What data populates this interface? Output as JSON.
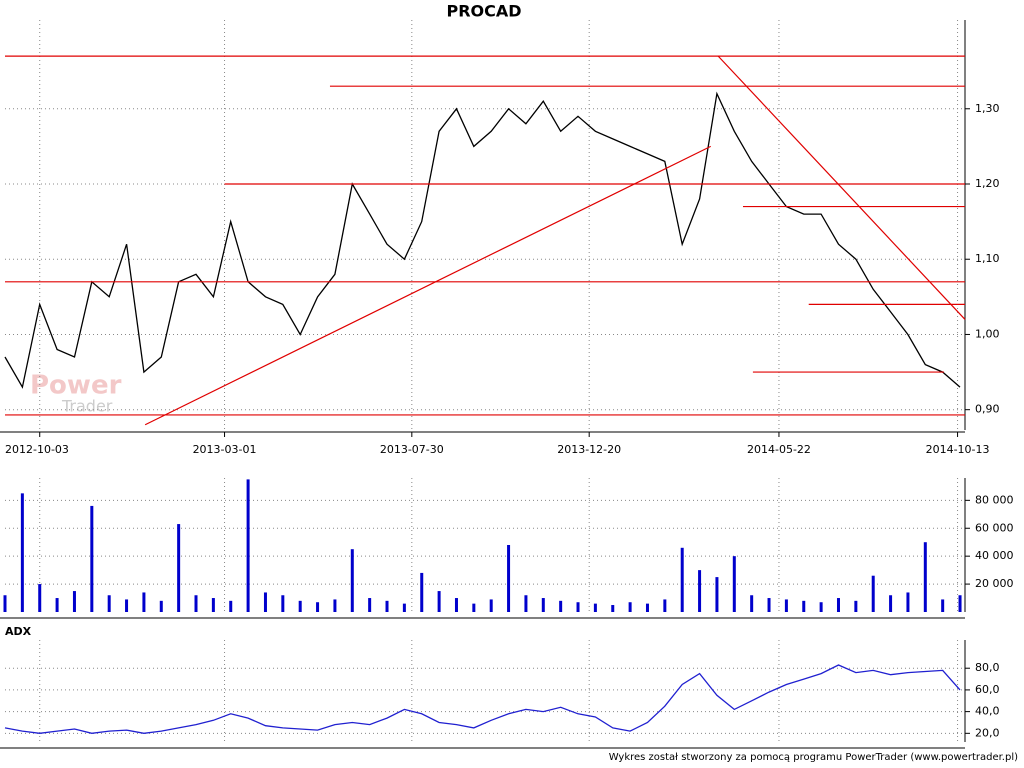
{
  "chart_data": [
    {
      "type": "line",
      "title": "PROCAD",
      "watermark": [
        "Power",
        "Trader"
      ],
      "x": [
        "2012-09-05",
        "2012-09-19",
        "2012-10-03",
        "2012-10-17",
        "2012-10-31",
        "2012-11-14",
        "2012-11-28",
        "2012-12-12",
        "2012-12-26",
        "2013-01-09",
        "2013-01-23",
        "2013-02-06",
        "2013-02-20",
        "2013-03-06",
        "2013-03-20",
        "2013-04-03",
        "2013-04-17",
        "2013-05-01",
        "2013-05-15",
        "2013-05-29",
        "2013-06-12",
        "2013-06-26",
        "2013-07-10",
        "2013-07-24",
        "2013-08-07",
        "2013-08-21",
        "2013-09-04",
        "2013-09-18",
        "2013-10-02",
        "2013-10-16",
        "2013-10-30",
        "2013-11-13",
        "2013-11-27",
        "2013-12-11",
        "2013-12-25",
        "2014-01-08",
        "2014-01-22",
        "2014-02-05",
        "2014-02-19",
        "2014-03-05",
        "2014-03-19",
        "2014-04-02",
        "2014-04-16",
        "2014-04-30",
        "2014-05-14",
        "2014-05-28",
        "2014-06-11",
        "2014-06-25",
        "2014-07-09",
        "2014-07-23",
        "2014-08-06",
        "2014-08-20",
        "2014-09-03",
        "2014-09-17",
        "2014-10-01",
        "2014-10-15"
      ],
      "series": [
        {
          "name": "PROCAD",
          "color": "#000000",
          "values": [
            0.97,
            0.93,
            1.04,
            0.98,
            0.97,
            1.07,
            1.05,
            1.12,
            0.95,
            0.97,
            1.07,
            1.08,
            1.05,
            1.15,
            1.07,
            1.05,
            1.04,
            1.0,
            1.05,
            1.08,
            1.2,
            1.16,
            1.12,
            1.1,
            1.15,
            1.27,
            1.3,
            1.25,
            1.27,
            1.3,
            1.28,
            1.31,
            1.27,
            1.29,
            1.27,
            1.26,
            1.25,
            1.24,
            1.23,
            1.12,
            1.18,
            1.32,
            1.27,
            1.23,
            1.2,
            1.17,
            1.16,
            1.16,
            1.12,
            1.1,
            1.06,
            1.03,
            1.0,
            0.96,
            0.95,
            0.93
          ]
        }
      ],
      "lines": [
        {
          "color": "#e00000",
          "x": [
            "2012-09-05",
            "2014-10-19"
          ],
          "y": [
            1.37,
            1.37
          ]
        },
        {
          "color": "#e00000",
          "x": [
            "2013-05-25",
            "2014-10-19"
          ],
          "y": [
            1.33,
            1.33
          ]
        },
        {
          "color": "#e00000",
          "x": [
            "2013-03-01",
            "2014-10-19"
          ],
          "y": [
            1.2,
            1.2
          ]
        },
        {
          "color": "#e00000",
          "x": [
            "2014-04-23",
            "2014-10-19"
          ],
          "y": [
            1.17,
            1.17
          ]
        },
        {
          "color": "#e00000",
          "x": [
            "2012-09-05",
            "2014-10-19"
          ],
          "y": [
            1.07,
            1.07
          ]
        },
        {
          "color": "#e00000",
          "x": [
            "2014-06-15",
            "2014-10-19"
          ],
          "y": [
            1.04,
            1.04
          ]
        },
        {
          "color": "#e00000",
          "x": [
            "2014-05-01",
            "2014-10-02"
          ],
          "y": [
            0.95,
            0.95
          ]
        },
        {
          "color": "#e00000",
          "x": [
            "2012-09-05",
            "2014-10-19"
          ],
          "y": [
            0.893,
            0.893
          ]
        },
        {
          "color": "#e00000",
          "x": [
            "2012-12-27",
            "2014-03-28"
          ],
          "y": [
            0.88,
            1.25
          ]
        },
        {
          "color": "#e00000",
          "x": [
            "2014-04-03",
            "2014-10-19"
          ],
          "y": [
            1.37,
            1.02
          ]
        }
      ],
      "xlim": [
        "2012-09-05",
        "2014-10-19"
      ],
      "xticks": [
        "2012-10-03",
        "2013-03-01",
        "2013-07-30",
        "2013-12-20",
        "2014-05-22",
        "2014-10-13"
      ],
      "ylim": [
        0.873,
        1.418
      ],
      "yticks": [
        {
          "value": 0.9,
          "label": "0,90"
        },
        {
          "value": 1.0,
          "label": "1,00"
        },
        {
          "value": 1.1,
          "label": "1,10"
        },
        {
          "value": 1.2,
          "label": "1,20"
        },
        {
          "value": 1.3,
          "label": "1,30"
        }
      ],
      "grid": true
    },
    {
      "type": "bar",
      "color": "#0000cc",
      "values": [
        12000,
        85000,
        20000,
        10000,
        15000,
        76000,
        12000,
        9000,
        14000,
        8000,
        63000,
        12000,
        10000,
        8000,
        95000,
        14000,
        12000,
        8000,
        7000,
        9000,
        45000,
        10000,
        8000,
        6000,
        28000,
        15000,
        10000,
        6000,
        9000,
        48000,
        12000,
        10000,
        8000,
        7000,
        6000,
        5000,
        7000,
        6000,
        9000,
        46000,
        30000,
        25000,
        40000,
        12000,
        10000,
        9000,
        8000,
        7000,
        10000,
        8000,
        26000,
        12000,
        14000,
        50000,
        9000,
        12000
      ],
      "ylim": [
        0,
        96000
      ],
      "yticks": [
        {
          "value": 20000,
          "label": "20 000"
        },
        {
          "value": 40000,
          "label": "40 000"
        },
        {
          "value": 60000,
          "label": "60 000"
        },
        {
          "value": 80000,
          "label": "80 000"
        }
      ],
      "grid": true
    },
    {
      "type": "line",
      "title": "ADX",
      "color": "#2020d0",
      "values": [
        25,
        22,
        20,
        22,
        24,
        20,
        22,
        23,
        20,
        22,
        25,
        28,
        32,
        38,
        34,
        27,
        25,
        24,
        23,
        28,
        30,
        28,
        34,
        42,
        38,
        30,
        28,
        25,
        32,
        38,
        42,
        40,
        44,
        38,
        35,
        25,
        22,
        30,
        45,
        65,
        75,
        55,
        42,
        50,
        58,
        65,
        70,
        75,
        83,
        76,
        78,
        74,
        76,
        77,
        78,
        60
      ],
      "ylim": [
        12,
        106
      ],
      "yticks": [
        {
          "value": 20,
          "label": "20,0"
        },
        {
          "value": 40,
          "label": "40,0"
        },
        {
          "value": 60,
          "label": "60,0"
        },
        {
          "value": 80,
          "label": "80,0"
        }
      ],
      "grid": true
    }
  ],
  "footer": "Wykres został stworzony za pomocą programu PowerTrader (www.powertrader.pl)"
}
